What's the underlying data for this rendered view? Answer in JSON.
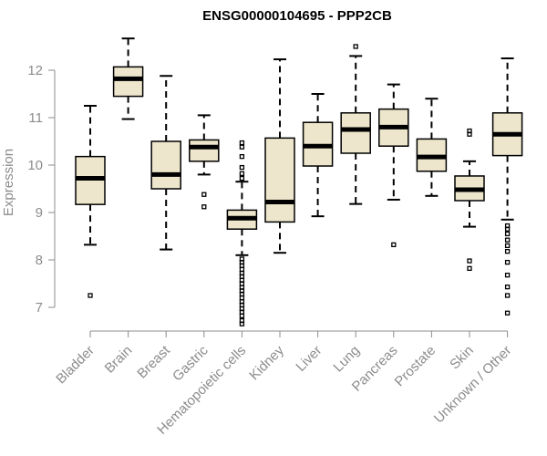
{
  "chart_data": {
    "type": "boxplot",
    "title": "ENSG00000104695 - PPP2CB",
    "xlabel": "",
    "ylabel": "Expression",
    "ylim": [
      6.5,
      13.0
    ],
    "yticks": [
      7,
      8,
      9,
      10,
      11,
      12
    ],
    "categories": [
      "Bladder",
      "Brain",
      "Breast",
      "Gastric",
      "Hematopoietic cells",
      "Kidney",
      "Liver",
      "Lung",
      "Pancreas",
      "Prostate",
      "Skin",
      "Unknown / Other"
    ],
    "boxes": [
      {
        "category": "Bladder",
        "whisker_low": 8.32,
        "q1": 9.17,
        "median": 9.72,
        "q3": 10.18,
        "whisker_high": 11.25,
        "outliers": [
          7.25
        ]
      },
      {
        "category": "Brain",
        "whisker_low": 10.97,
        "q1": 11.45,
        "median": 11.82,
        "q3": 12.07,
        "whisker_high": 12.67,
        "outliers": []
      },
      {
        "category": "Breast",
        "whisker_low": 8.22,
        "q1": 9.5,
        "median": 9.8,
        "q3": 10.5,
        "whisker_high": 11.88,
        "outliers": []
      },
      {
        "category": "Gastric",
        "whisker_low": 9.8,
        "q1": 10.08,
        "median": 10.38,
        "q3": 10.53,
        "whisker_high": 11.05,
        "outliers": [
          9.38,
          9.12
        ]
      },
      {
        "category": "Hematopoietic cells",
        "whisker_low": 8.1,
        "q1": 8.65,
        "median": 8.88,
        "q3": 9.05,
        "whisker_high": 9.65,
        "outliers": [
          10.47,
          10.38,
          10.18,
          9.95,
          9.82,
          9.72,
          8.02,
          7.95,
          7.88,
          7.8,
          7.72,
          7.65,
          7.57,
          7.5,
          7.42,
          7.35,
          7.28,
          7.2,
          7.12,
          7.05,
          6.97,
          6.9,
          6.82,
          6.72,
          6.65
        ]
      },
      {
        "category": "Kidney",
        "whisker_low": 8.15,
        "q1": 8.8,
        "median": 9.22,
        "q3": 10.57,
        "whisker_high": 12.23,
        "outliers": []
      },
      {
        "category": "Liver",
        "whisker_low": 8.92,
        "q1": 9.98,
        "median": 10.4,
        "q3": 10.9,
        "whisker_high": 11.5,
        "outliers": []
      },
      {
        "category": "Lung",
        "whisker_low": 9.18,
        "q1": 10.25,
        "median": 10.75,
        "q3": 11.1,
        "whisker_high": 12.3,
        "outliers": [
          12.5
        ]
      },
      {
        "category": "Pancreas",
        "whisker_low": 9.27,
        "q1": 10.4,
        "median": 10.8,
        "q3": 11.18,
        "whisker_high": 11.7,
        "outliers": [
          8.32
        ]
      },
      {
        "category": "Prostate",
        "whisker_low": 9.35,
        "q1": 9.87,
        "median": 10.17,
        "q3": 10.55,
        "whisker_high": 11.4,
        "outliers": []
      },
      {
        "category": "Skin",
        "whisker_low": 8.7,
        "q1": 9.25,
        "median": 9.48,
        "q3": 9.77,
        "whisker_high": 10.08,
        "outliers": [
          10.72,
          10.65,
          7.98,
          7.82
        ]
      },
      {
        "category": "Unknown / Other",
        "whisker_low": 8.85,
        "q1": 10.2,
        "median": 10.65,
        "q3": 11.1,
        "whisker_high": 12.25,
        "outliers": [
          8.72,
          8.65,
          8.55,
          8.42,
          8.3,
          8.18,
          7.95,
          7.68,
          7.43,
          7.25,
          6.88
        ]
      }
    ]
  }
}
